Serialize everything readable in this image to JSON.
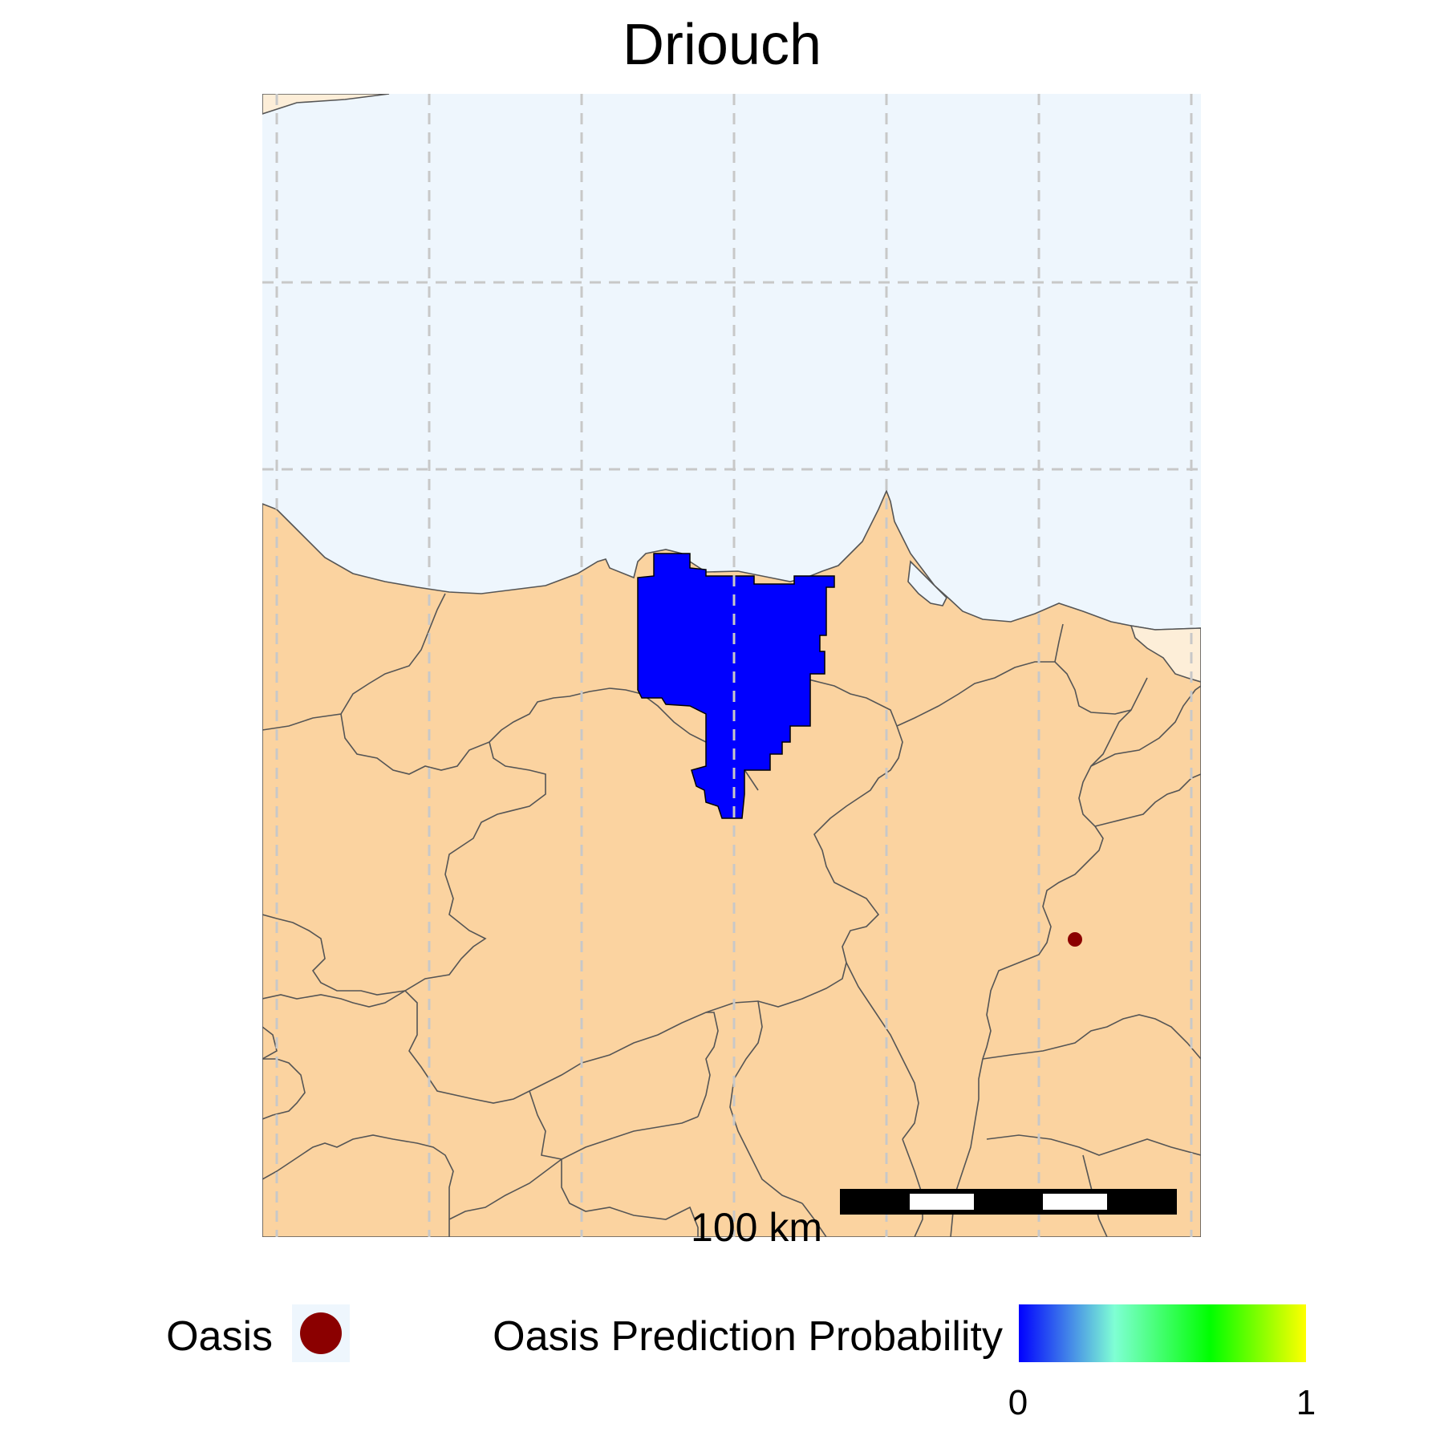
{
  "title": "Driouch",
  "colors": {
    "sea": "#eef6fd",
    "land": "#fbd3a0",
    "neighbor_land": "#fdeed8",
    "border": "#555555",
    "highlight_region": "#0000ff",
    "oasis_point": "#8b0000",
    "graticule": "#c8c8c8"
  },
  "scale_bar": {
    "label": "100 km"
  },
  "oasis_points_count": 1,
  "legend": {
    "oasis_label": "Oasis",
    "probability_label": "Oasis Prediction Probability",
    "ticks": [
      "0",
      "1"
    ],
    "gradient_colors": [
      "#0000ff",
      "#7fffd4",
      "#00ff00",
      "#ffff00"
    ]
  }
}
